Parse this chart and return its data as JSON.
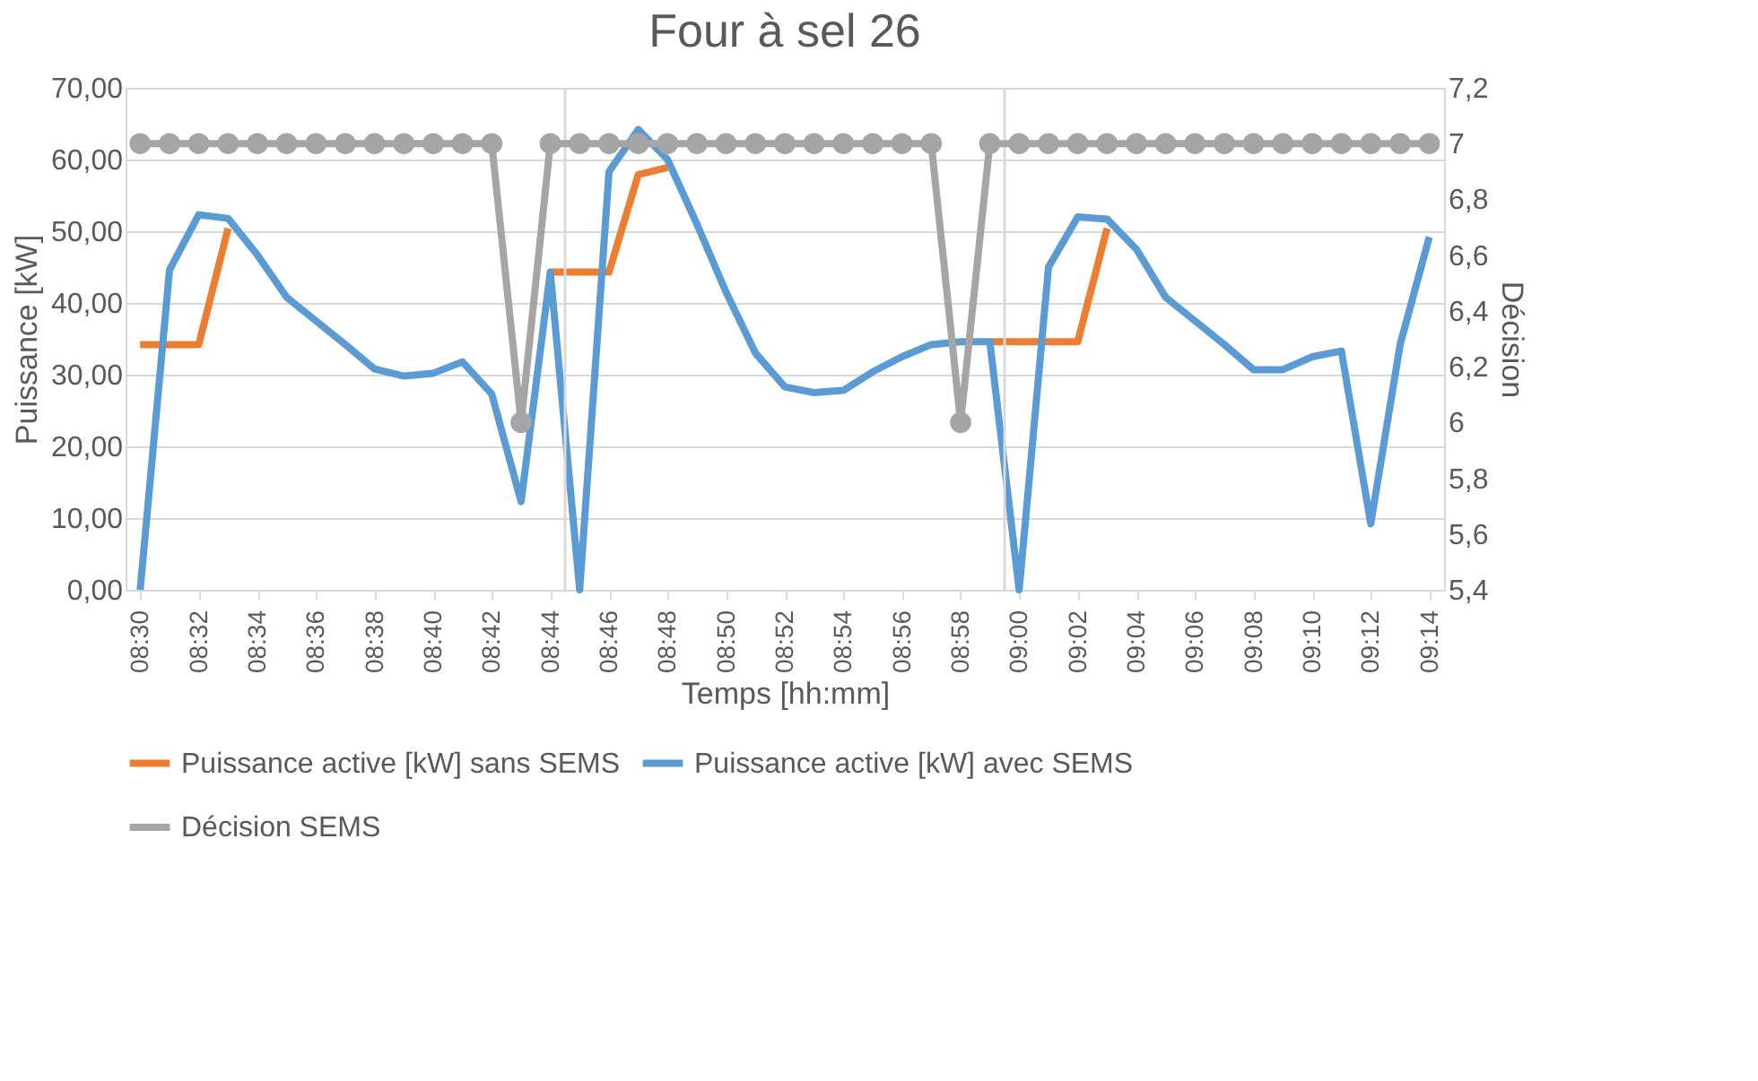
{
  "chart_data": {
    "type": "line",
    "title": "Four à sel 26",
    "xlabel": "Temps [hh:mm]",
    "ylabel": "Puissance [kW]",
    "y2label": "Décision",
    "x": [
      8.5,
      8.5167,
      8.5333,
      8.55,
      8.5667,
      8.5833,
      8.6,
      8.6167,
      8.6333,
      8.65,
      8.6667,
      8.6833,
      8.7,
      8.7167,
      8.7333,
      8.75,
      8.7667,
      8.7833,
      8.8,
      8.8167,
      8.8333,
      8.85,
      8.8667,
      8.8833,
      8.9,
      8.9167,
      8.9333,
      8.95,
      8.9667,
      8.9833,
      9.0,
      9.0167,
      9.0333,
      9.05,
      9.0667,
      9.0833,
      9.1,
      9.1167,
      9.1333,
      9.15,
      9.1667,
      9.1833,
      9.2,
      9.2167,
      9.2333
    ],
    "series": [
      {
        "name": "Puissance active [kW] sans SEMS",
        "color": "#ed7d31",
        "type": "line",
        "marker": "none",
        "values": [
          34.2,
          34.2,
          34.2,
          50.4,
          null,
          null,
          null,
          null,
          null,
          null,
          null,
          null,
          null,
          null,
          44.3,
          44.3,
          44.3,
          57.9,
          58.9,
          null,
          null,
          null,
          null,
          null,
          null,
          null,
          null,
          null,
          null,
          34.6,
          34.6,
          34.6,
          34.6,
          50.4,
          null,
          null,
          null,
          null,
          null,
          null,
          null,
          null,
          null,
          null,
          null
        ]
      },
      {
        "name": "Puissance active [kW] avec SEMS",
        "color": "#5b9bd5",
        "type": "line",
        "marker": "none",
        "values": [
          0,
          44.6,
          52.3,
          51.8,
          46.7,
          40.8,
          37.5,
          34.2,
          30.8,
          29.8,
          30.2,
          31.8,
          27.3,
          12.3,
          44.3,
          0,
          58.3,
          64.2,
          60.0,
          51,
          41.5,
          33,
          28.3,
          27.5,
          27.8,
          30.4,
          32.5,
          34.2,
          34.6,
          34.6,
          0,
          45.0,
          52,
          51.7,
          47.5,
          40.8,
          37.5,
          34.2,
          30.7,
          30.7,
          32.5,
          33.3,
          9.2,
          34.2,
          49.2
        ]
      },
      {
        "name": "Décision SEMS",
        "color": "#a5a5a5",
        "type": "line",
        "marker": "circle",
        "axis": "y2",
        "values": [
          7,
          7,
          7,
          7,
          7,
          7,
          7,
          7,
          7,
          7,
          7,
          7,
          7,
          6,
          7,
          7,
          7,
          7,
          7,
          7,
          7,
          7,
          7,
          7,
          7,
          7,
          7,
          7,
          6,
          7,
          7,
          7,
          7,
          7,
          7,
          7,
          7,
          7,
          7,
          7,
          7,
          7,
          7,
          7,
          7
        ]
      }
    ],
    "xlim": [
      8.4917,
      9.2417
    ],
    "xticks": [
      {
        "value": 8.5,
        "label": "08:30"
      },
      {
        "value": 8.5333,
        "label": "08:32"
      },
      {
        "value": 8.5667,
        "label": "08:34"
      },
      {
        "value": 8.6,
        "label": "08:36"
      },
      {
        "value": 8.6333,
        "label": "08:38"
      },
      {
        "value": 8.6667,
        "label": "08:40"
      },
      {
        "value": 8.7,
        "label": "08:42"
      },
      {
        "value": 8.7333,
        "label": "08:44"
      },
      {
        "value": 8.7667,
        "label": "08:46"
      },
      {
        "value": 8.8,
        "label": "08:48"
      },
      {
        "value": 8.8333,
        "label": "08:50"
      },
      {
        "value": 8.8667,
        "label": "08:52"
      },
      {
        "value": 8.9,
        "label": "08:54"
      },
      {
        "value": 8.9333,
        "label": "08:56"
      },
      {
        "value": 8.9667,
        "label": "08:58"
      },
      {
        "value": 9.0,
        "label": "09:00"
      },
      {
        "value": 9.0333,
        "label": "09:02"
      },
      {
        "value": 9.0667,
        "label": "09:04"
      },
      {
        "value": 9.1,
        "label": "09:06"
      },
      {
        "value": 9.1333,
        "label": "09:08"
      },
      {
        "value": 9.1667,
        "label": "09:10"
      },
      {
        "value": 9.2,
        "label": "09:12"
      },
      {
        "value": 9.2333,
        "label": "09:14"
      }
    ],
    "ylim": [
      0,
      70
    ],
    "yticks": [
      {
        "value": 0,
        "label": "0,00"
      },
      {
        "value": 10,
        "label": "10,00"
      },
      {
        "value": 20,
        "label": "20,00"
      },
      {
        "value": 30,
        "label": "30,00"
      },
      {
        "value": 40,
        "label": "40,00"
      },
      {
        "value": 50,
        "label": "50,00"
      },
      {
        "value": 60,
        "label": "60,00"
      },
      {
        "value": 70,
        "label": "70,00"
      }
    ],
    "y2lim": [
      5.4,
      7.2
    ],
    "y2ticks": [
      {
        "value": 5.4,
        "label": "5,4"
      },
      {
        "value": 5.6,
        "label": "5,6"
      },
      {
        "value": 5.8,
        "label": "5,8"
      },
      {
        "value": 6,
        "label": "6"
      },
      {
        "value": 6.2,
        "label": "6,2"
      },
      {
        "value": 6.4,
        "label": "6,4"
      },
      {
        "value": 6.6,
        "label": "6,6"
      },
      {
        "value": 6.8,
        "label": "6,8"
      },
      {
        "value": 7,
        "label": "7"
      },
      {
        "value": 7.2,
        "label": "7,2"
      }
    ],
    "ref_lines": [
      {
        "axis": "x",
        "value": 8.7417,
        "color": "#d9d9d9"
      },
      {
        "axis": "x",
        "value": 8.9917,
        "color": "#d9d9d9"
      }
    ],
    "grid": "y",
    "legend": "bottom",
    "line_style": "solid"
  }
}
